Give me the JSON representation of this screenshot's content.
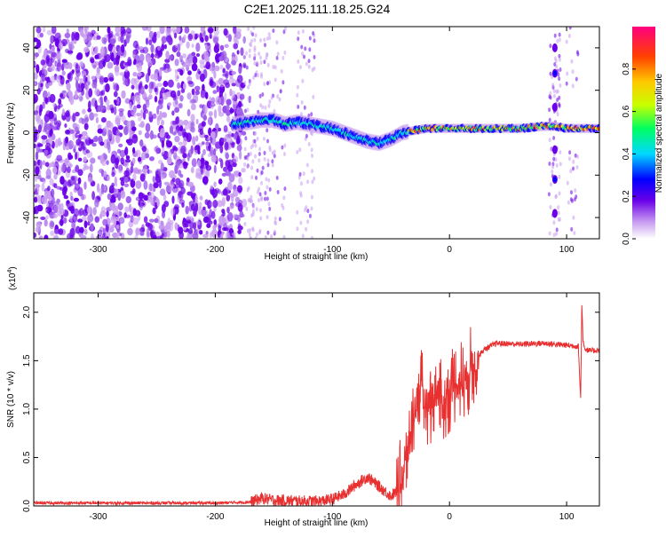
{
  "title": "C2E1.2025.111.18.25.G24",
  "chart_data": [
    {
      "type": "heatmap",
      "title": "C2E1.2025.111.18.25.G24",
      "xlabel": "Height of straight line (km)",
      "ylabel": "Frequency (Hz)",
      "xlim": [
        -355,
        128
      ],
      "ylim": [
        -50,
        50
      ],
      "xticks": [
        -300,
        -200,
        -100,
        0,
        100
      ],
      "yticks": [
        -40,
        -20,
        0,
        20,
        40
      ],
      "xtick_labels": [
        "-300",
        "-200",
        "-100",
        "0",
        "100"
      ],
      "ytick_labels": [
        "-40",
        "-20",
        "0",
        "20",
        "40"
      ],
      "colorbar": {
        "label": "Normalized spectral amplitude",
        "range": [
          0,
          1
        ],
        "ticks": [
          0.0,
          0.2,
          0.4,
          0.6,
          0.8
        ],
        "tick_labels": [
          "0.0",
          "0.2",
          "0.4",
          "0.6",
          "0.8"
        ],
        "colormap": [
          "#ffffff",
          "#c89cf0",
          "#6a00e8",
          "#0000ff",
          "#00d8ff",
          "#00ff60",
          "#c8ff00",
          "#ffc800",
          "#ff4000",
          "#ff0080"
        ]
      },
      "noise_region_x": [
        -355,
        -175
      ],
      "ridge": {
        "x": [
          -185,
          -170,
          -160,
          -150,
          -140,
          -130,
          -120,
          -110,
          -100,
          -90,
          -80,
          -70,
          -60,
          -50,
          -40,
          -30,
          -20,
          -10,
          0,
          20,
          40,
          60,
          80,
          90,
          100,
          110,
          128
        ],
        "y": [
          4,
          5,
          6,
          6,
          4,
          5,
          4,
          3,
          2,
          0,
          -2,
          -4,
          -5,
          -3,
          0,
          1,
          2,
          2,
          2,
          2,
          2,
          2,
          3,
          3,
          2,
          2,
          2
        ]
      },
      "vertical_spike_x": 90
    },
    {
      "type": "line",
      "xlabel": "Height of straight line (km)",
      "ylabel": "SNR (10 * v/v)",
      "y_multiplier": "(x10",
      "y_multiplier_exp": "4",
      "y_multiplier_close": ")",
      "xlim": [
        -355,
        128
      ],
      "ylim": [
        0,
        2.2
      ],
      "xticks": [
        -300,
        -200,
        -100,
        0,
        100
      ],
      "yticks": [
        0.0,
        0.5,
        1.0,
        1.5,
        2.0
      ],
      "xtick_labels": [
        "-300",
        "-200",
        "-100",
        "0",
        "100"
      ],
      "ytick_labels": [
        "0.0",
        "0.5",
        "1.0",
        "1.5",
        "2.0"
      ],
      "color": "#e83030",
      "series": [
        {
          "x": [
            -355,
            -300,
            -250,
            -200,
            -170,
            -160,
            -150,
            -130,
            -110,
            -100,
            -90,
            -80,
            -70,
            -60,
            -50,
            -45,
            -40,
            -35,
            -30,
            -25,
            -20,
            -15,
            -10,
            -5,
            0,
            5,
            10,
            15,
            20,
            25,
            30,
            40,
            60,
            80,
            100,
            110,
            112,
            113,
            114,
            116,
            120,
            128
          ],
          "y": [
            0.03,
            0.03,
            0.03,
            0.03,
            0.04,
            0.08,
            0.06,
            0.05,
            0.05,
            0.07,
            0.12,
            0.22,
            0.3,
            0.2,
            0.1,
            0.15,
            0.3,
            0.6,
            1.0,
            1.2,
            1.05,
            1.1,
            1.2,
            1.0,
            1.2,
            1.25,
            1.3,
            1.35,
            1.45,
            1.55,
            1.62,
            1.68,
            1.67,
            1.68,
            1.66,
            1.65,
            1.1,
            2.1,
            1.7,
            1.62,
            1.6,
            1.61
          ]
        }
      ]
    }
  ]
}
